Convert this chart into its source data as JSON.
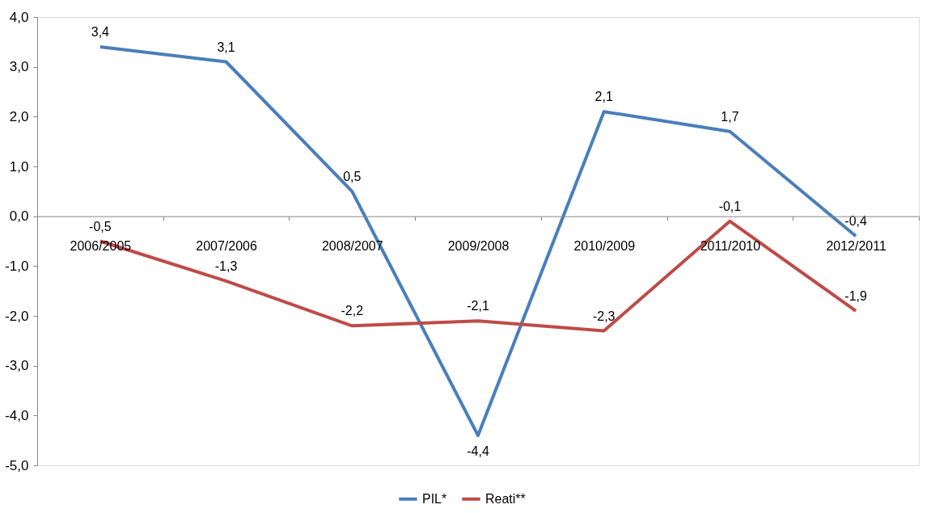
{
  "chart_data": {
    "type": "line",
    "categories": [
      "2006/2005",
      "2007/2006",
      "2008/2007",
      "2009/2008",
      "2010/2009",
      "2011/2010",
      "2012/2011"
    ],
    "series": [
      {
        "name": "PIL*",
        "color": "#4a7ebb",
        "values": [
          3.4,
          3.1,
          0.5,
          -4.4,
          2.1,
          1.7,
          -0.4
        ],
        "value_labels": [
          "3,4",
          "3,1",
          "0,5",
          "-4,4",
          "2,1",
          "1,7",
          "-0,4"
        ]
      },
      {
        "name": "Reati**",
        "color": "#be4b48",
        "values": [
          -0.5,
          -1.3,
          -2.2,
          -2.1,
          -2.3,
          -0.1,
          -1.9
        ],
        "value_labels": [
          "-0,5",
          "-1,3",
          "-2,2",
          "-2,1",
          "-2,3",
          "-0,1",
          "-1,9"
        ]
      }
    ],
    "ylim": [
      -5,
      4
    ],
    "yticks": [
      {
        "value": -5,
        "label": "-5,0"
      },
      {
        "value": -4,
        "label": "-4,0"
      },
      {
        "value": -3,
        "label": "-3,0"
      },
      {
        "value": -2,
        "label": "-2,0"
      },
      {
        "value": -1,
        "label": "-1,0"
      },
      {
        "value": 0,
        "label": "0,0"
      },
      {
        "value": 1,
        "label": "1,0"
      },
      {
        "value": 2,
        "label": "2,0"
      },
      {
        "value": 3,
        "label": "3,0"
      },
      {
        "value": 4,
        "label": "4,0"
      }
    ],
    "grid": false,
    "legend": "bottom",
    "marker": "none",
    "line_style": "solid"
  }
}
